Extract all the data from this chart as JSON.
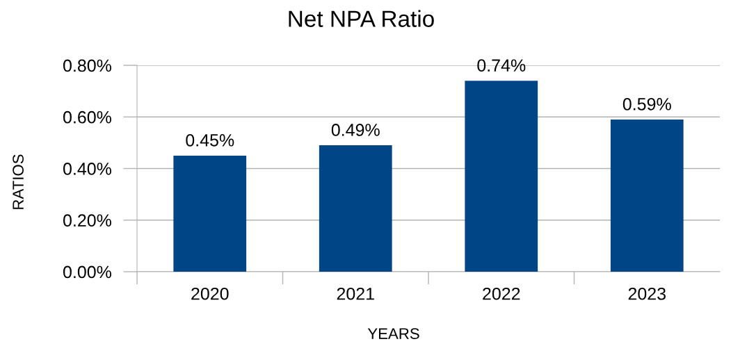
{
  "chart_data": {
    "type": "bar",
    "title": "Net NPA Ratio",
    "xlabel": "YEARS",
    "ylabel": "RATIOS",
    "categories": [
      "2020",
      "2021",
      "2022",
      "2023"
    ],
    "values": [
      0.45,
      0.49,
      0.74,
      0.59
    ],
    "color": "#004586",
    "value_labels": [
      "0.45%",
      "0.49%",
      "0.74%",
      "0.59%"
    ],
    "ylim": [
      0,
      0.8
    ],
    "yticks": [
      {
        "value": 0,
        "label": "0.00%"
      },
      {
        "value": 0.2,
        "label": "0.20%"
      },
      {
        "value": 0.4,
        "label": "0.40%"
      },
      {
        "value": 0.6,
        "label": "0.60%"
      },
      {
        "value": 0.8,
        "label": "0.80%"
      }
    ],
    "grid": "y"
  }
}
